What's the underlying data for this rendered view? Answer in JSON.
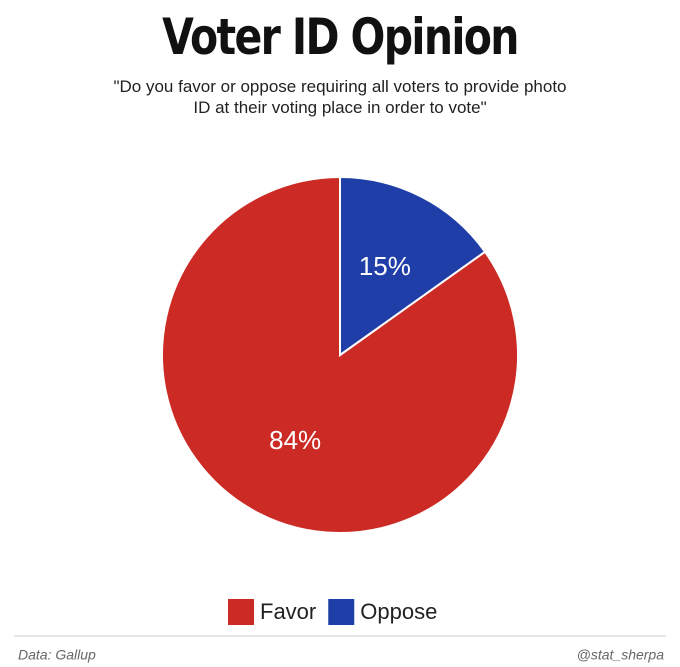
{
  "chart_data": {
    "type": "pie",
    "title": "Voter ID Opinion",
    "subtitle": "\"Do you favor or oppose requiring all voters to provide photo ID at their voting place in order to vote\"",
    "categories": [
      "Favor",
      "Oppose"
    ],
    "values": [
      84,
      15
    ],
    "value_labels": [
      "84%",
      "15%"
    ],
    "colors": [
      "#cc2b25",
      "#1f3ea8"
    ],
    "legend": "bottom",
    "source": "Data: Gallup",
    "credit": "@stat_sherpa"
  }
}
